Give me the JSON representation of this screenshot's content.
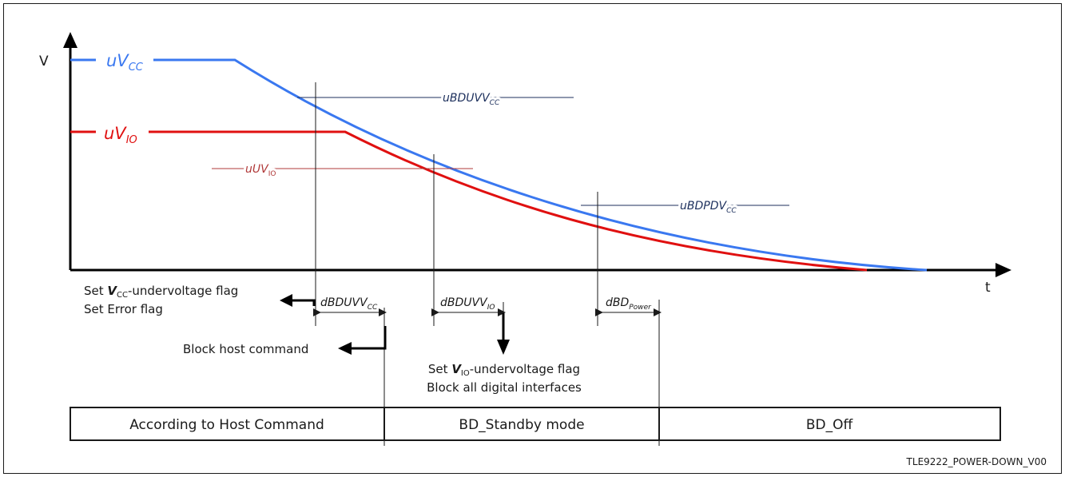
{
  "axes": {
    "y_label": "V",
    "x_label": "t"
  },
  "voltages": {
    "vcc_label_main": "uV",
    "vcc_label_sub": "CC",
    "vio_label_main": "uV",
    "vio_label_sub": "IO"
  },
  "thresholds": {
    "bduvvcc_main": "uBDUVV",
    "bduvvcc_sub": "CC",
    "uvio_main": "uUV",
    "uvio_sub": "IO",
    "bdpdvcc_main": "uBDPDV",
    "bdpdvcc_sub": "CC"
  },
  "delays": {
    "d1_main": "dBDUVV",
    "d1_sub": "CC",
    "d2_main": "dBDUVV",
    "d2_sub": "IO",
    "d3_main": "dBD",
    "d3_sub": "Power"
  },
  "events": {
    "vcc_flag_pre": "Set ",
    "vcc_flag_bold": "V",
    "vcc_flag_sub": "CC",
    "vcc_flag_post": "-undervoltage flag",
    "error_flag": "Set Error flag",
    "block_host": "Block host command",
    "vio_flag_pre": "Set ",
    "vio_flag_bold": "V",
    "vio_flag_sub": "IO",
    "vio_flag_post": "-undervoltage flag",
    "block_digital": "Block all digital interfaces"
  },
  "modes": [
    "According to Host Command",
    "BD_Standby mode",
    "BD_Off"
  ],
  "figure_id": "TLE9222_POWER-DOWN_V00",
  "colors": {
    "vcc": "#3a78f0",
    "vio": "#e01010",
    "vio_threshold": "#b03838",
    "threshold_dark": "#1c2f5c",
    "line": "#1a1a1a"
  }
}
